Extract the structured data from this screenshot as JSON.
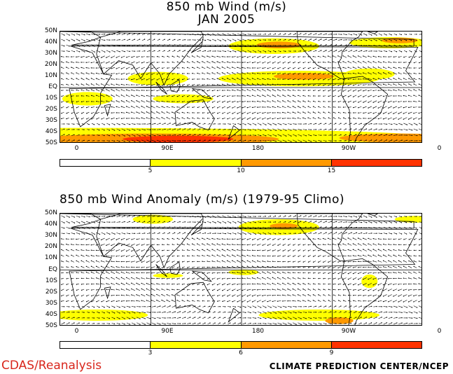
{
  "top_panel": {
    "title_line1": "850 mb Wind (m/s)",
    "title_line2": "JAN 2005",
    "legend": {
      "thresholds": [
        "5",
        "10",
        "15"
      ],
      "colors": [
        "#ffffff",
        "#ffff00",
        "#ff9900",
        "#ff3300"
      ]
    }
  },
  "bottom_panel": {
    "title": "850 mb Wind Anomaly (m/s) (1979-95 Climo)",
    "legend": {
      "thresholds": [
        "3",
        "6",
        "9"
      ],
      "colors": [
        "#ffffff",
        "#ffff00",
        "#ff9900",
        "#ff3300"
      ]
    }
  },
  "lat_labels": [
    "50N",
    "40N",
    "30N",
    "20N",
    "10N",
    "EQ",
    "10S",
    "20S",
    "30S",
    "40S",
    "50S"
  ],
  "lon_labels": [
    "0",
    "90E",
    "180",
    "90W",
    "0"
  ],
  "footer": {
    "left": "CDAS/Reanalysis",
    "right": "CLIMATE PREDICTION CENTER/NCEP"
  }
}
